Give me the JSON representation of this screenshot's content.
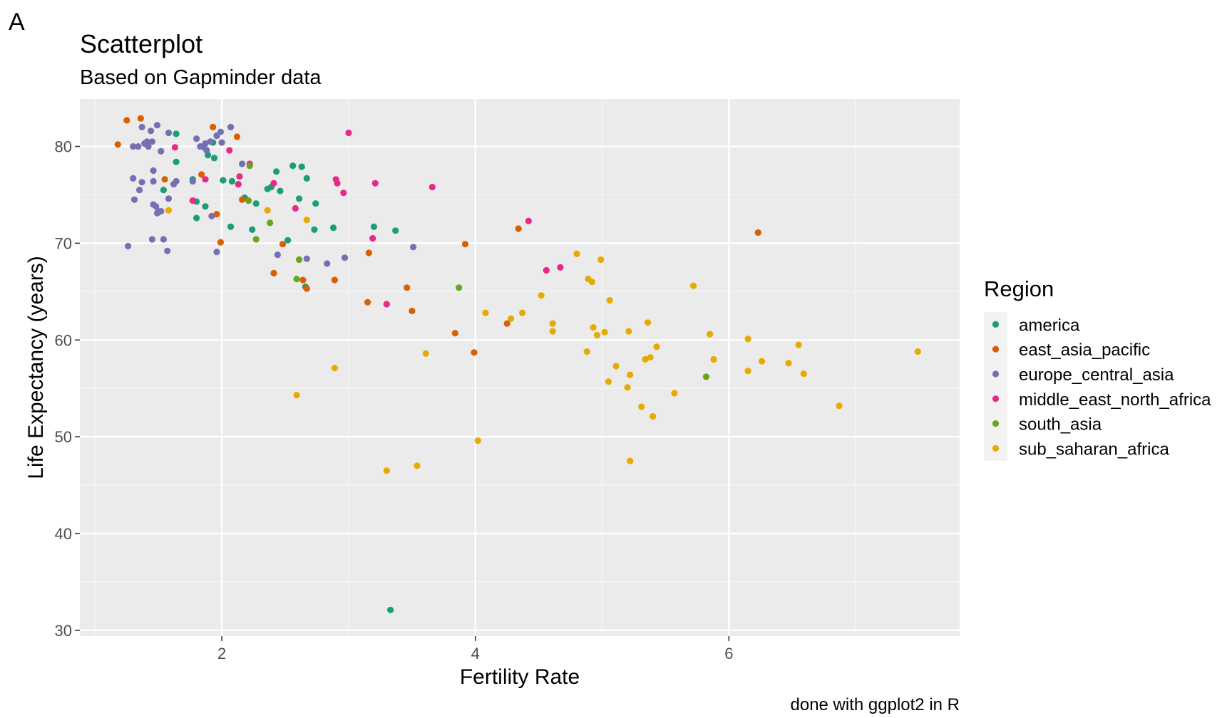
{
  "panel_tag": "A",
  "chart_data": {
    "type": "scatter",
    "title": "Scatterplot",
    "subtitle": "Based on Gapminder data",
    "xlabel": "Fertility Rate",
    "ylabel": "Life Expectancy (years)",
    "caption": "done with ggplot2 in R",
    "xlim": [
      0.88,
      7.82
    ],
    "ylim": [
      29.4,
      84.9
    ],
    "xticks": [
      2,
      4,
      6
    ],
    "yticks": [
      30,
      40,
      50,
      60,
      70,
      80
    ],
    "grid": true,
    "legend": {
      "title": "Region",
      "placement": "right",
      "entries": [
        "america",
        "east_asia_pacific",
        "europe_central_asia",
        "middle_east_north_africa",
        "south_asia",
        "sub_saharan_africa"
      ]
    },
    "series": [
      {
        "name": "america",
        "color": "#1b9e77",
        "points": [
          [
            1.64,
            81.3
          ],
          [
            1.64,
            78.4
          ],
          [
            1.93,
            80.4
          ],
          [
            1.94,
            78.8
          ],
          [
            1.54,
            75.5
          ],
          [
            1.77,
            76.6
          ],
          [
            1.8,
            74.3
          ],
          [
            1.8,
            72.6
          ],
          [
            1.87,
            73.8
          ],
          [
            1.89,
            79.1
          ],
          [
            2.01,
            76.5
          ],
          [
            2.08,
            76.4
          ],
          [
            2.07,
            71.7
          ],
          [
            2.18,
            74.7
          ],
          [
            2.24,
            71.4
          ],
          [
            2.27,
            74.1
          ],
          [
            2.36,
            75.6
          ],
          [
            2.39,
            75.8
          ],
          [
            2.43,
            77.4
          ],
          [
            2.46,
            75.4
          ],
          [
            2.52,
            70.3
          ],
          [
            2.56,
            78.0
          ],
          [
            2.61,
            74.6
          ],
          [
            2.63,
            77.9
          ],
          [
            2.67,
            76.7
          ],
          [
            2.73,
            71.4
          ],
          [
            2.74,
            74.1
          ],
          [
            2.88,
            71.6
          ],
          [
            2.66,
            65.5
          ],
          [
            3.2,
            71.7
          ],
          [
            3.37,
            71.3
          ],
          [
            3.33,
            32.1
          ]
        ]
      },
      {
        "name": "east_asia_pacific",
        "color": "#d95f02",
        "points": [
          [
            1.18,
            80.2
          ],
          [
            1.25,
            82.7
          ],
          [
            1.36,
            82.9
          ],
          [
            1.55,
            76.6
          ],
          [
            1.84,
            77.1
          ],
          [
            1.93,
            82.0
          ],
          [
            1.96,
            73.0
          ],
          [
            1.99,
            70.1
          ],
          [
            2.12,
            81.0
          ],
          [
            2.16,
            74.5
          ],
          [
            2.41,
            66.9
          ],
          [
            2.48,
            69.9
          ],
          [
            2.64,
            66.2
          ],
          [
            2.67,
            65.3
          ],
          [
            2.89,
            66.2
          ],
          [
            3.15,
            63.9
          ],
          [
            3.16,
            69.0
          ],
          [
            3.46,
            65.4
          ],
          [
            3.5,
            63.0
          ],
          [
            3.84,
            60.7
          ],
          [
            3.92,
            69.9
          ],
          [
            3.99,
            58.7
          ],
          [
            4.25,
            61.7
          ],
          [
            4.34,
            71.5
          ],
          [
            6.23,
            71.1
          ]
        ]
      },
      {
        "name": "europe_central_asia",
        "color": "#7570b3",
        "points": [
          [
            1.3,
            80.0
          ],
          [
            1.34,
            80.0
          ],
          [
            1.37,
            82.0
          ],
          [
            1.39,
            80.3
          ],
          [
            1.41,
            80.5
          ],
          [
            1.42,
            80.0
          ],
          [
            1.44,
            81.6
          ],
          [
            1.45,
            80.5
          ],
          [
            1.49,
            82.2
          ],
          [
            1.52,
            79.5
          ],
          [
            1.58,
            81.4
          ],
          [
            1.3,
            76.7
          ],
          [
            1.35,
            75.5
          ],
          [
            1.37,
            76.3
          ],
          [
            1.46,
            77.5
          ],
          [
            1.46,
            76.4
          ],
          [
            1.49,
            73.1
          ],
          [
            1.52,
            73.3
          ],
          [
            1.58,
            74.6
          ],
          [
            1.62,
            76.1
          ],
          [
            1.64,
            76.4
          ],
          [
            1.31,
            74.5
          ],
          [
            1.46,
            74.0
          ],
          [
            1.48,
            73.8
          ],
          [
            1.5,
            73.3
          ],
          [
            1.77,
            76.4
          ],
          [
            1.8,
            80.8
          ],
          [
            1.83,
            80.0
          ],
          [
            1.86,
            79.9
          ],
          [
            1.87,
            80.3
          ],
          [
            1.88,
            79.6
          ],
          [
            1.91,
            80.5
          ],
          [
            1.96,
            81.1
          ],
          [
            1.99,
            81.5
          ],
          [
            2.0,
            80.4
          ],
          [
            2.07,
            82.0
          ],
          [
            2.16,
            78.2
          ],
          [
            1.92,
            72.8
          ],
          [
            1.96,
            69.1
          ],
          [
            1.26,
            69.7
          ],
          [
            1.45,
            70.4
          ],
          [
            1.54,
            70.4
          ],
          [
            1.57,
            69.2
          ],
          [
            2.44,
            68.8
          ],
          [
            2.67,
            68.4
          ],
          [
            2.83,
            67.9
          ],
          [
            2.97,
            68.5
          ],
          [
            3.51,
            69.6
          ]
        ]
      },
      {
        "name": "middle_east_north_africa",
        "color": "#e7298a",
        "points": [
          [
            1.63,
            79.9
          ],
          [
            1.77,
            74.4
          ],
          [
            1.87,
            76.6
          ],
          [
            2.06,
            79.6
          ],
          [
            2.13,
            76.1
          ],
          [
            2.14,
            76.9
          ],
          [
            2.22,
            78.2
          ],
          [
            2.41,
            76.2
          ],
          [
            2.58,
            73.6
          ],
          [
            2.9,
            76.6
          ],
          [
            2.91,
            76.2
          ],
          [
            2.96,
            75.2
          ],
          [
            3.0,
            81.4
          ],
          [
            3.19,
            70.5
          ],
          [
            3.21,
            76.2
          ],
          [
            3.3,
            63.7
          ],
          [
            3.66,
            75.8
          ],
          [
            4.42,
            72.3
          ],
          [
            4.56,
            67.2
          ],
          [
            4.67,
            67.5
          ]
        ]
      },
      {
        "name": "south_asia",
        "color": "#66a61e",
        "points": [
          [
            2.22,
            78.0
          ],
          [
            2.21,
            74.4
          ],
          [
            2.27,
            70.4
          ],
          [
            2.38,
            72.1
          ],
          [
            2.61,
            68.3
          ],
          [
            2.59,
            66.3
          ],
          [
            3.87,
            65.4
          ],
          [
            5.82,
            56.2
          ]
        ]
      },
      {
        "name": "sub_saharan_africa",
        "color": "#e6ab02",
        "points": [
          [
            1.58,
            73.4
          ],
          [
            2.36,
            73.4
          ],
          [
            2.67,
            72.4
          ],
          [
            2.59,
            54.3
          ],
          [
            2.89,
            57.1
          ],
          [
            3.3,
            46.5
          ],
          [
            3.54,
            47.0
          ],
          [
            3.61,
            58.6
          ],
          [
            4.02,
            49.6
          ],
          [
            4.08,
            62.8
          ],
          [
            4.28,
            62.2
          ],
          [
            4.37,
            62.8
          ],
          [
            4.52,
            64.6
          ],
          [
            4.61,
            61.7
          ],
          [
            4.61,
            60.9
          ],
          [
            4.8,
            68.9
          ],
          [
            4.88,
            58.8
          ],
          [
            4.89,
            66.3
          ],
          [
            4.92,
            66.0
          ],
          [
            4.93,
            61.3
          ],
          [
            4.96,
            60.5
          ],
          [
            4.99,
            68.3
          ],
          [
            5.02,
            60.8
          ],
          [
            5.05,
            55.7
          ],
          [
            5.06,
            64.1
          ],
          [
            5.11,
            57.3
          ],
          [
            5.2,
            55.1
          ],
          [
            5.21,
            60.9
          ],
          [
            5.22,
            56.4
          ],
          [
            5.22,
            47.5
          ],
          [
            5.31,
            53.1
          ],
          [
            5.34,
            58.0
          ],
          [
            5.36,
            61.8
          ],
          [
            5.38,
            58.2
          ],
          [
            5.4,
            52.1
          ],
          [
            5.43,
            59.3
          ],
          [
            5.57,
            54.5
          ],
          [
            5.72,
            65.6
          ],
          [
            5.85,
            60.6
          ],
          [
            5.88,
            58.0
          ],
          [
            6.15,
            60.1
          ],
          [
            6.15,
            56.8
          ],
          [
            6.26,
            57.8
          ],
          [
            6.47,
            57.6
          ],
          [
            6.55,
            59.5
          ],
          [
            6.59,
            56.5
          ],
          [
            6.87,
            53.2
          ],
          [
            7.49,
            58.8
          ]
        ]
      }
    ]
  }
}
